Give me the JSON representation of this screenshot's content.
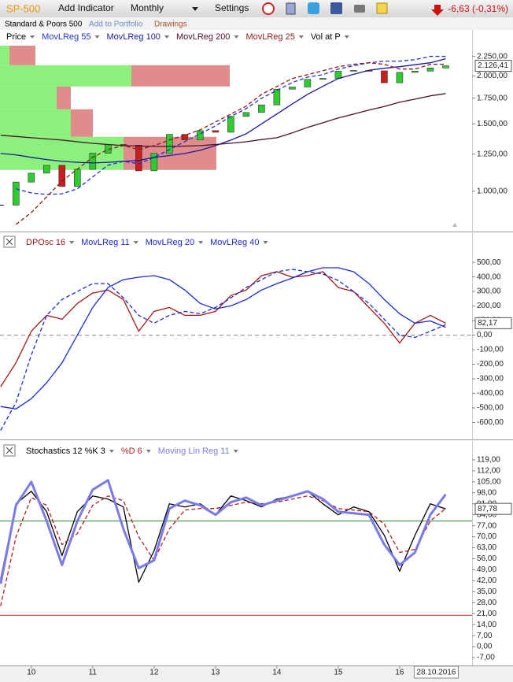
{
  "toolbar": {
    "symbol": "SP-500",
    "add_indicator": "Add Indicator",
    "period": "Monthly",
    "settings": "Settings",
    "change": "-6,63 (-0,31%)"
  },
  "subheader": {
    "name": "Standard & Poors 500",
    "add_portfolio": "Add to Portfolio",
    "drawings": "Drawings"
  },
  "chart_data": [
    {
      "type": "candlestick",
      "log_scale": true,
      "x": [
        2009.5,
        2009.75,
        2010,
        2010.25,
        2010.5,
        2010.75,
        2011,
        2011.25,
        2011.5,
        2011.75,
        2012,
        2012.25,
        2012.5,
        2012.75,
        2013,
        2013.25,
        2013.5,
        2013.75,
        2014,
        2014.25,
        2014.5,
        2014.75,
        2015,
        2015.25,
        2015.5,
        2015.75,
        2016,
        2016.25,
        2016.5,
        2016.75
      ],
      "xlim": [
        2009.49,
        2017.18
      ],
      "ylim": [
        800,
        2400
      ],
      "yticks": [
        {
          "value": 2250,
          "label": "2.250,00"
        },
        {
          "value": 2000,
          "label": "2.000,00"
        },
        {
          "value": 1750,
          "label": "1.750,00"
        },
        {
          "value": 1500,
          "label": "1.500,00"
        },
        {
          "value": 1250,
          "label": "1.250,00"
        },
        {
          "value": 1000,
          "label": "1.000,00"
        }
      ],
      "series": [
        {
          "name": "Price",
          "color": "#000000",
          "up_color": "#2ecc2e",
          "down_color": "#c81e1e",
          "values": [
            920,
            1057,
            1115,
            1169,
            1030,
            1141,
            1257,
            1325,
            1320,
            1131,
            1257,
            1408,
            1362,
            1440,
            1426,
            1569,
            1606,
            1681,
            1848,
            1872,
            1960,
            1972,
            2059,
            2068,
            2063,
            1920,
            2044,
            2060,
            2099,
            2126.41
          ],
          "value_labels": [
            null,
            null,
            null,
            null,
            null,
            null,
            null,
            null,
            null,
            null,
            null,
            null,
            null,
            null,
            null,
            null,
            null,
            null,
            null,
            null,
            null,
            null,
            null,
            null,
            null,
            null,
            null,
            null,
            null,
            "2.126,41"
          ]
        },
        {
          "name": "MovLReg 55",
          "color": "#2233cc",
          "dashed": true,
          "values": [
            null,
            1015,
            990,
            981,
            985,
            1015,
            1090,
            1170,
            1197,
            1180,
            1226,
            1285,
            1348,
            1413,
            1482,
            1569,
            1644,
            1750,
            1834,
            1923,
            1987,
            2016,
            2085,
            2127,
            2166,
            2187,
            2187,
            2206,
            2250,
            2250
          ]
        },
        {
          "name": "MovLReg 100",
          "color": "#1a1aa0",
          "values": [
            1255,
            1245,
            1226,
            1210,
            1197,
            1190,
            1186,
            1190,
            1197,
            1203,
            1226,
            1240,
            1255,
            1280,
            1316,
            1360,
            1413,
            1500,
            1592,
            1690,
            1791,
            1880,
            1970,
            2020,
            2070,
            2095,
            2115,
            2140,
            2166,
            2219
          ]
        },
        {
          "name": "MovLReg 200",
          "color": "#4a1030",
          "values": [
            1400,
            1390,
            1380,
            1370,
            1360,
            1347,
            1334,
            1325,
            1316,
            1313,
            1310,
            1310,
            1312,
            1316,
            1325,
            1335,
            1347,
            1365,
            1380,
            1420,
            1468,
            1510,
            1554,
            1590,
            1629,
            1665,
            1708,
            1740,
            1775,
            1800
          ]
        },
        {
          "name": "MovLReg 25",
          "color": "#8b1a1a",
          "dashed": true,
          "values": [
            null,
            819,
            880,
            967,
            1064,
            1142,
            1226,
            1286,
            1316,
            1286,
            1316,
            1361,
            1400,
            1447,
            1517,
            1590,
            1668,
            1791,
            1878,
            1970,
            2016,
            2065,
            2115,
            2145,
            2166,
            2145,
            2085,
            2085,
            2145,
            2146
          ]
        }
      ],
      "volume_at_price": {
        "name": "Vol at P",
        "color": "#000000",
        "up_color": "#8cf07c",
        "down_color": "#e08c8c",
        "bins": [
          1137,
          1387,
          1637,
          1878,
          2134,
          2400
        ],
        "up": [
          157,
          90,
          72,
          167,
          12
        ],
        "down": [
          118,
          28,
          18,
          125,
          33
        ]
      }
    },
    {
      "type": "line",
      "zero_line": true,
      "x": [
        2009.5,
        2009.75,
        2010,
        2010.25,
        2010.5,
        2010.75,
        2011,
        2011.25,
        2011.5,
        2011.75,
        2012,
        2012.25,
        2012.5,
        2012.75,
        2013,
        2013.25,
        2013.5,
        2013.75,
        2014,
        2014.25,
        2014.5,
        2014.75,
        2015,
        2015.25,
        2015.5,
        2015.75,
        2016,
        2016.25,
        2016.5,
        2016.75
      ],
      "xlim": [
        2009.49,
        2017.18
      ],
      "ylim": [
        -700,
        690
      ],
      "yticks": [
        {
          "value": 500,
          "label": "500,00"
        },
        {
          "value": 400,
          "label": "400,00"
        },
        {
          "value": 300,
          "label": "300,00"
        },
        {
          "value": 200,
          "label": "200,00"
        },
        {
          "value": 100,
          "label": "100,00"
        },
        {
          "value": 0,
          "label": "0,00"
        },
        {
          "value": -100,
          "label": "-100,00"
        },
        {
          "value": -200,
          "label": "-200,00"
        },
        {
          "value": -300,
          "label": "-300,00"
        },
        {
          "value": -400,
          "label": "-400,00"
        },
        {
          "value": -500,
          "label": "-500,00"
        },
        {
          "value": -600,
          "label": "-600,00"
        }
      ],
      "series": [
        {
          "name": "DPOsc 16",
          "color": "#a01818",
          "values": [
            -354,
            -190,
            27,
            136,
            109,
            218,
            289,
            310,
            245,
            27,
            163,
            190,
            136,
            136,
            163,
            272,
            310,
            409,
            436,
            398,
            409,
            436,
            327,
            300,
            190,
            82,
            -54,
            82,
            136,
            82.17
          ],
          "value_labels": [
            null,
            null,
            null,
            null,
            null,
            null,
            null,
            null,
            null,
            null,
            null,
            null,
            null,
            null,
            null,
            null,
            null,
            null,
            null,
            null,
            null,
            null,
            null,
            null,
            null,
            null,
            null,
            null,
            null,
            "82,17"
          ]
        },
        {
          "name": "MovLReg 11",
          "color": "#1a2ad0",
          "dashed": true,
          "values": [
            -654,
            -463,
            -136,
            136,
            245,
            300,
            354,
            354,
            256,
            136,
            82,
            136,
            163,
            147,
            190,
            256,
            327,
            381,
            436,
            452,
            436,
            420,
            376,
            300,
            218,
            109,
            0,
            -16,
            27,
            71
          ]
        },
        {
          "name": "MovLReg 20",
          "color": "#1a2ad0",
          "values": [
            -490,
            -507,
            -436,
            -327,
            -190,
            0,
            190,
            327,
            381,
            398,
            409,
            381,
            310,
            218,
            180,
            201,
            245,
            310,
            354,
            392,
            436,
            463,
            463,
            436,
            354,
            245,
            147,
            82,
            98,
            54
          ]
        },
        {
          "name": "MovLReg 40",
          "color": "#1a2ad0",
          "values": [
            null,
            null,
            null,
            null,
            null,
            null,
            null,
            null,
            null,
            null,
            null,
            null,
            null,
            null,
            null,
            null,
            null,
            null,
            null,
            null,
            null,
            null,
            null,
            null,
            null,
            null,
            null,
            null,
            null,
            null
          ]
        }
      ]
    },
    {
      "type": "line",
      "x": [
        2009.5,
        2009.75,
        2010,
        2010.25,
        2010.5,
        2010.75,
        2011,
        2011.25,
        2011.5,
        2011.75,
        2012,
        2012.25,
        2012.5,
        2012.75,
        2013,
        2013.25,
        2013.5,
        2013.75,
        2014,
        2014.25,
        2014.5,
        2014.75,
        2015,
        2015.25,
        2015.5,
        2015.75,
        2016,
        2016.25,
        2016.5,
        2016.75
      ],
      "xlim": [
        2009.49,
        2017.18
      ],
      "ylim": [
        -11,
        130
      ],
      "xticks": [
        {
          "value": 2010,
          "label": "10"
        },
        {
          "value": 2011,
          "label": "11"
        },
        {
          "value": 2012,
          "label": "12"
        },
        {
          "value": 2013,
          "label": "13"
        },
        {
          "value": 2014,
          "label": "14"
        },
        {
          "value": 2015,
          "label": "15"
        },
        {
          "value": 2016,
          "label": "16"
        }
      ],
      "date_label": "28.10.2016",
      "yticks": [
        {
          "value": 119,
          "label": "119,00"
        },
        {
          "value": 112,
          "label": "112,00"
        },
        {
          "value": 105,
          "label": "105,00"
        },
        {
          "value": 98,
          "label": "98,00"
        },
        {
          "value": 91,
          "label": "91,00"
        },
        {
          "value": 84,
          "label": "84,00"
        },
        {
          "value": 77,
          "label": "77,00"
        },
        {
          "value": 70,
          "label": "70,00"
        },
        {
          "value": 63,
          "label": "63,00"
        },
        {
          "value": 56,
          "label": "56,00"
        },
        {
          "value": 49,
          "label": "49,00"
        },
        {
          "value": 42,
          "label": "42,00"
        },
        {
          "value": 35,
          "label": "35,00"
        },
        {
          "value": 28,
          "label": "28,00"
        },
        {
          "value": 21,
          "label": "21,00"
        },
        {
          "value": 14,
          "label": "14,00"
        },
        {
          "value": 7,
          "label": "7,00"
        },
        {
          "value": 0,
          "label": "0,00"
        },
        {
          "value": -7,
          "label": "-7,00"
        }
      ],
      "levels": [
        {
          "value": 80,
          "color": "#2e8b2e"
        },
        {
          "value": 20,
          "color": "#cc2222"
        }
      ],
      "series": [
        {
          "name": "Stochastics 12 %K 3",
          "color": "#000000",
          "values": [
            43,
            91,
            99,
            86,
            58,
            86,
            96,
            94,
            89,
            41,
            61,
            91,
            89,
            91,
            84,
            96,
            93,
            89,
            94,
            96,
            99,
            91,
            84,
            89,
            86,
            71,
            48,
            71,
            91,
            87.78
          ],
          "value_labels": [
            null,
            null,
            null,
            null,
            null,
            null,
            null,
            null,
            null,
            null,
            null,
            null,
            null,
            null,
            null,
            null,
            null,
            null,
            null,
            null,
            null,
            null,
            null,
            null,
            null,
            null,
            null,
            null,
            null,
            "87,78"
          ]
        },
        {
          "name": "%D 6",
          "color": "#b02020",
          "dashed": true,
          "values": [
            26,
            70,
            95,
            90,
            65,
            72,
            90,
            96,
            93,
            70,
            55,
            75,
            87,
            88,
            88,
            90,
            92,
            91,
            92,
            94,
            96,
            93,
            88,
            87,
            86,
            78,
            60,
            62,
            80,
            88
          ]
        },
        {
          "name": "Moving Lin Reg 11",
          "color": "#7b7be8",
          "thick": true,
          "values": [
            40,
            90,
            105,
            80,
            52,
            80,
            100,
            106,
            75,
            50,
            55,
            88,
            93,
            90,
            84,
            92,
            95,
            90,
            93,
            96,
            99,
            94,
            86,
            85,
            84,
            65,
            52,
            60,
            84,
            97
          ]
        }
      ]
    }
  ]
}
